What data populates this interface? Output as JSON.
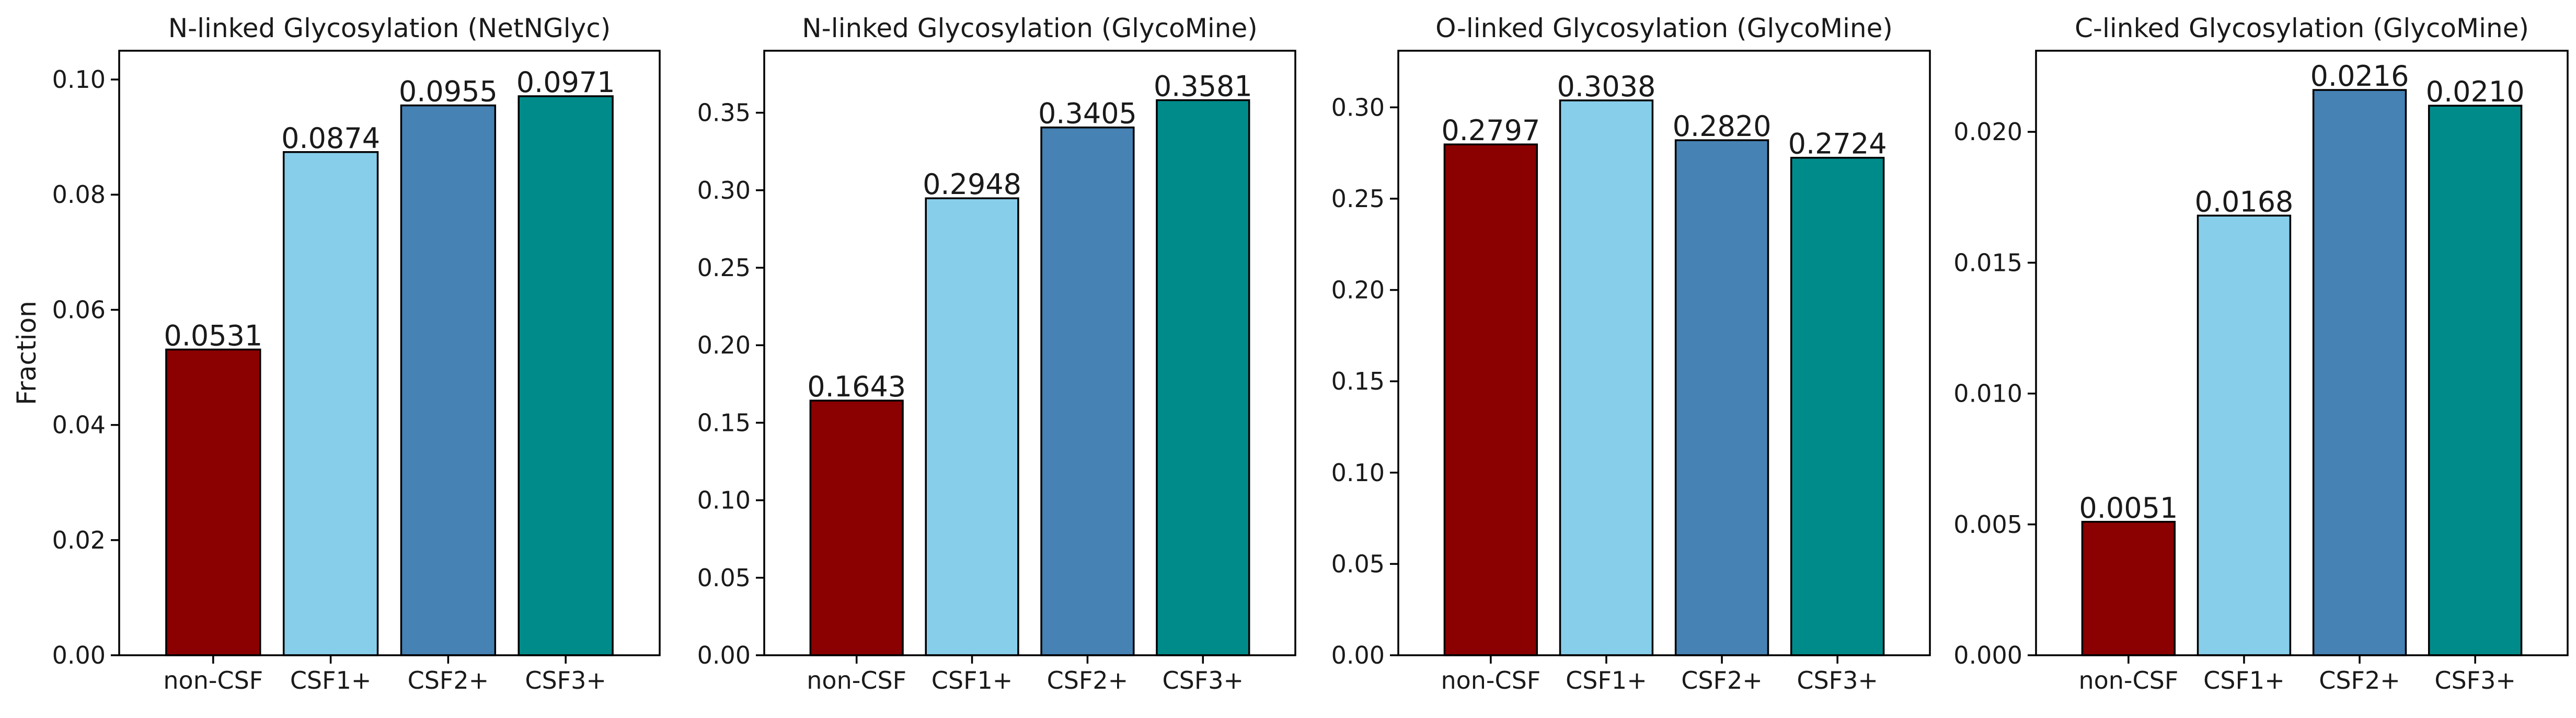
{
  "chart_data": [
    {
      "type": "bar",
      "title": "N-linked Glycosylation (NetNGlyc)",
      "ylabel": "Fraction",
      "categories": [
        "non-CSF",
        "CSF1+",
        "CSF2+",
        "CSF3+"
      ],
      "values": [
        0.0531,
        0.0874,
        0.0955,
        0.0971
      ],
      "value_labels": [
        "0.0531",
        "0.0874",
        "0.0955",
        "0.0971"
      ],
      "ylim": [
        0,
        0.105
      ],
      "yticks": [
        0.0,
        0.02,
        0.04,
        0.06,
        0.08,
        0.1
      ],
      "ytick_labels": [
        "0.00",
        "0.02",
        "0.04",
        "0.06",
        "0.08",
        "0.10"
      ]
    },
    {
      "type": "bar",
      "title": "N-linked Glycosylation (GlycoMine)",
      "ylabel": "",
      "categories": [
        "non-CSF",
        "CSF1+",
        "CSF2+",
        "CSF3+"
      ],
      "values": [
        0.1643,
        0.2948,
        0.3405,
        0.3581
      ],
      "value_labels": [
        "0.1643",
        "0.2948",
        "0.3405",
        "0.3581"
      ],
      "ylim": [
        0,
        0.39
      ],
      "yticks": [
        0.0,
        0.05,
        0.1,
        0.15,
        0.2,
        0.25,
        0.3,
        0.35
      ],
      "ytick_labels": [
        "0.00",
        "0.05",
        "0.10",
        "0.15",
        "0.20",
        "0.25",
        "0.30",
        "0.35"
      ]
    },
    {
      "type": "bar",
      "title": "O-linked Glycosylation (GlycoMine)",
      "ylabel": "",
      "categories": [
        "non-CSF",
        "CSF1+",
        "CSF2+",
        "CSF3+"
      ],
      "values": [
        0.2797,
        0.3038,
        0.282,
        0.2724
      ],
      "value_labels": [
        "0.2797",
        "0.3038",
        "0.2820",
        "0.2724"
      ],
      "ylim": [
        0,
        0.331
      ],
      "yticks": [
        0.0,
        0.05,
        0.1,
        0.15,
        0.2,
        0.25,
        0.3
      ],
      "ytick_labels": [
        "0.00",
        "0.05",
        "0.10",
        "0.15",
        "0.20",
        "0.25",
        "0.30"
      ]
    },
    {
      "type": "bar",
      "title": "C-linked Glycosylation (GlycoMine)",
      "ylabel": "",
      "categories": [
        "non-CSF",
        "CSF1+",
        "CSF2+",
        "CSF3+"
      ],
      "values": [
        0.0051,
        0.0168,
        0.0216,
        0.021
      ],
      "value_labels": [
        "0.0051",
        "0.0168",
        "0.0216",
        "0.0210"
      ],
      "ylim": [
        0,
        0.0231
      ],
      "yticks": [
        0.0,
        0.005,
        0.01,
        0.015,
        0.02
      ],
      "ytick_labels": [
        "0.000",
        "0.005",
        "0.010",
        "0.015",
        "0.020"
      ]
    }
  ],
  "bar_colors": [
    "#8b0000",
    "#87ceeb",
    "#4682b4",
    "#008b8b"
  ],
  "bar_edge_color": "#000000",
  "grid": false,
  "legend": false
}
